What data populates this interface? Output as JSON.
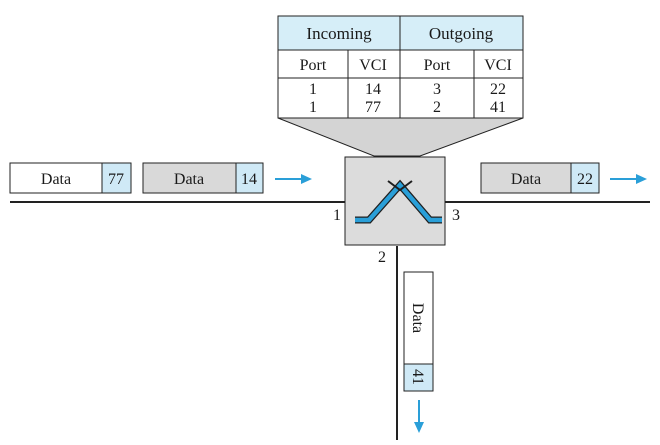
{
  "table": {
    "headers": {
      "incoming": "Incoming",
      "outgoing": "Outgoing"
    },
    "subheaders": [
      "Port",
      "VCI",
      "Port",
      "VCI"
    ],
    "rows": [
      [
        "1",
        "14",
        "3",
        "22"
      ],
      [
        "1",
        "77",
        "2",
        "41"
      ]
    ]
  },
  "ports": {
    "left": "1",
    "right": "3",
    "bottom": "2"
  },
  "frames": {
    "incoming_1": {
      "data": "Data",
      "vci": "77"
    },
    "incoming_2": {
      "data": "Data",
      "vci": "14"
    },
    "outgoing_right": {
      "data": "Data",
      "vci": "22"
    },
    "outgoing_bottom": {
      "data": "Data",
      "vci": "41"
    }
  },
  "colors": {
    "header_fill": "#d6eef8",
    "vci_fill": "#cfe9f6",
    "data_gray": "#d9d9d9",
    "switch_fill": "#dcdcdc",
    "arrow": "#2a9fd8",
    "switch_path": "#2a9fd8"
  }
}
